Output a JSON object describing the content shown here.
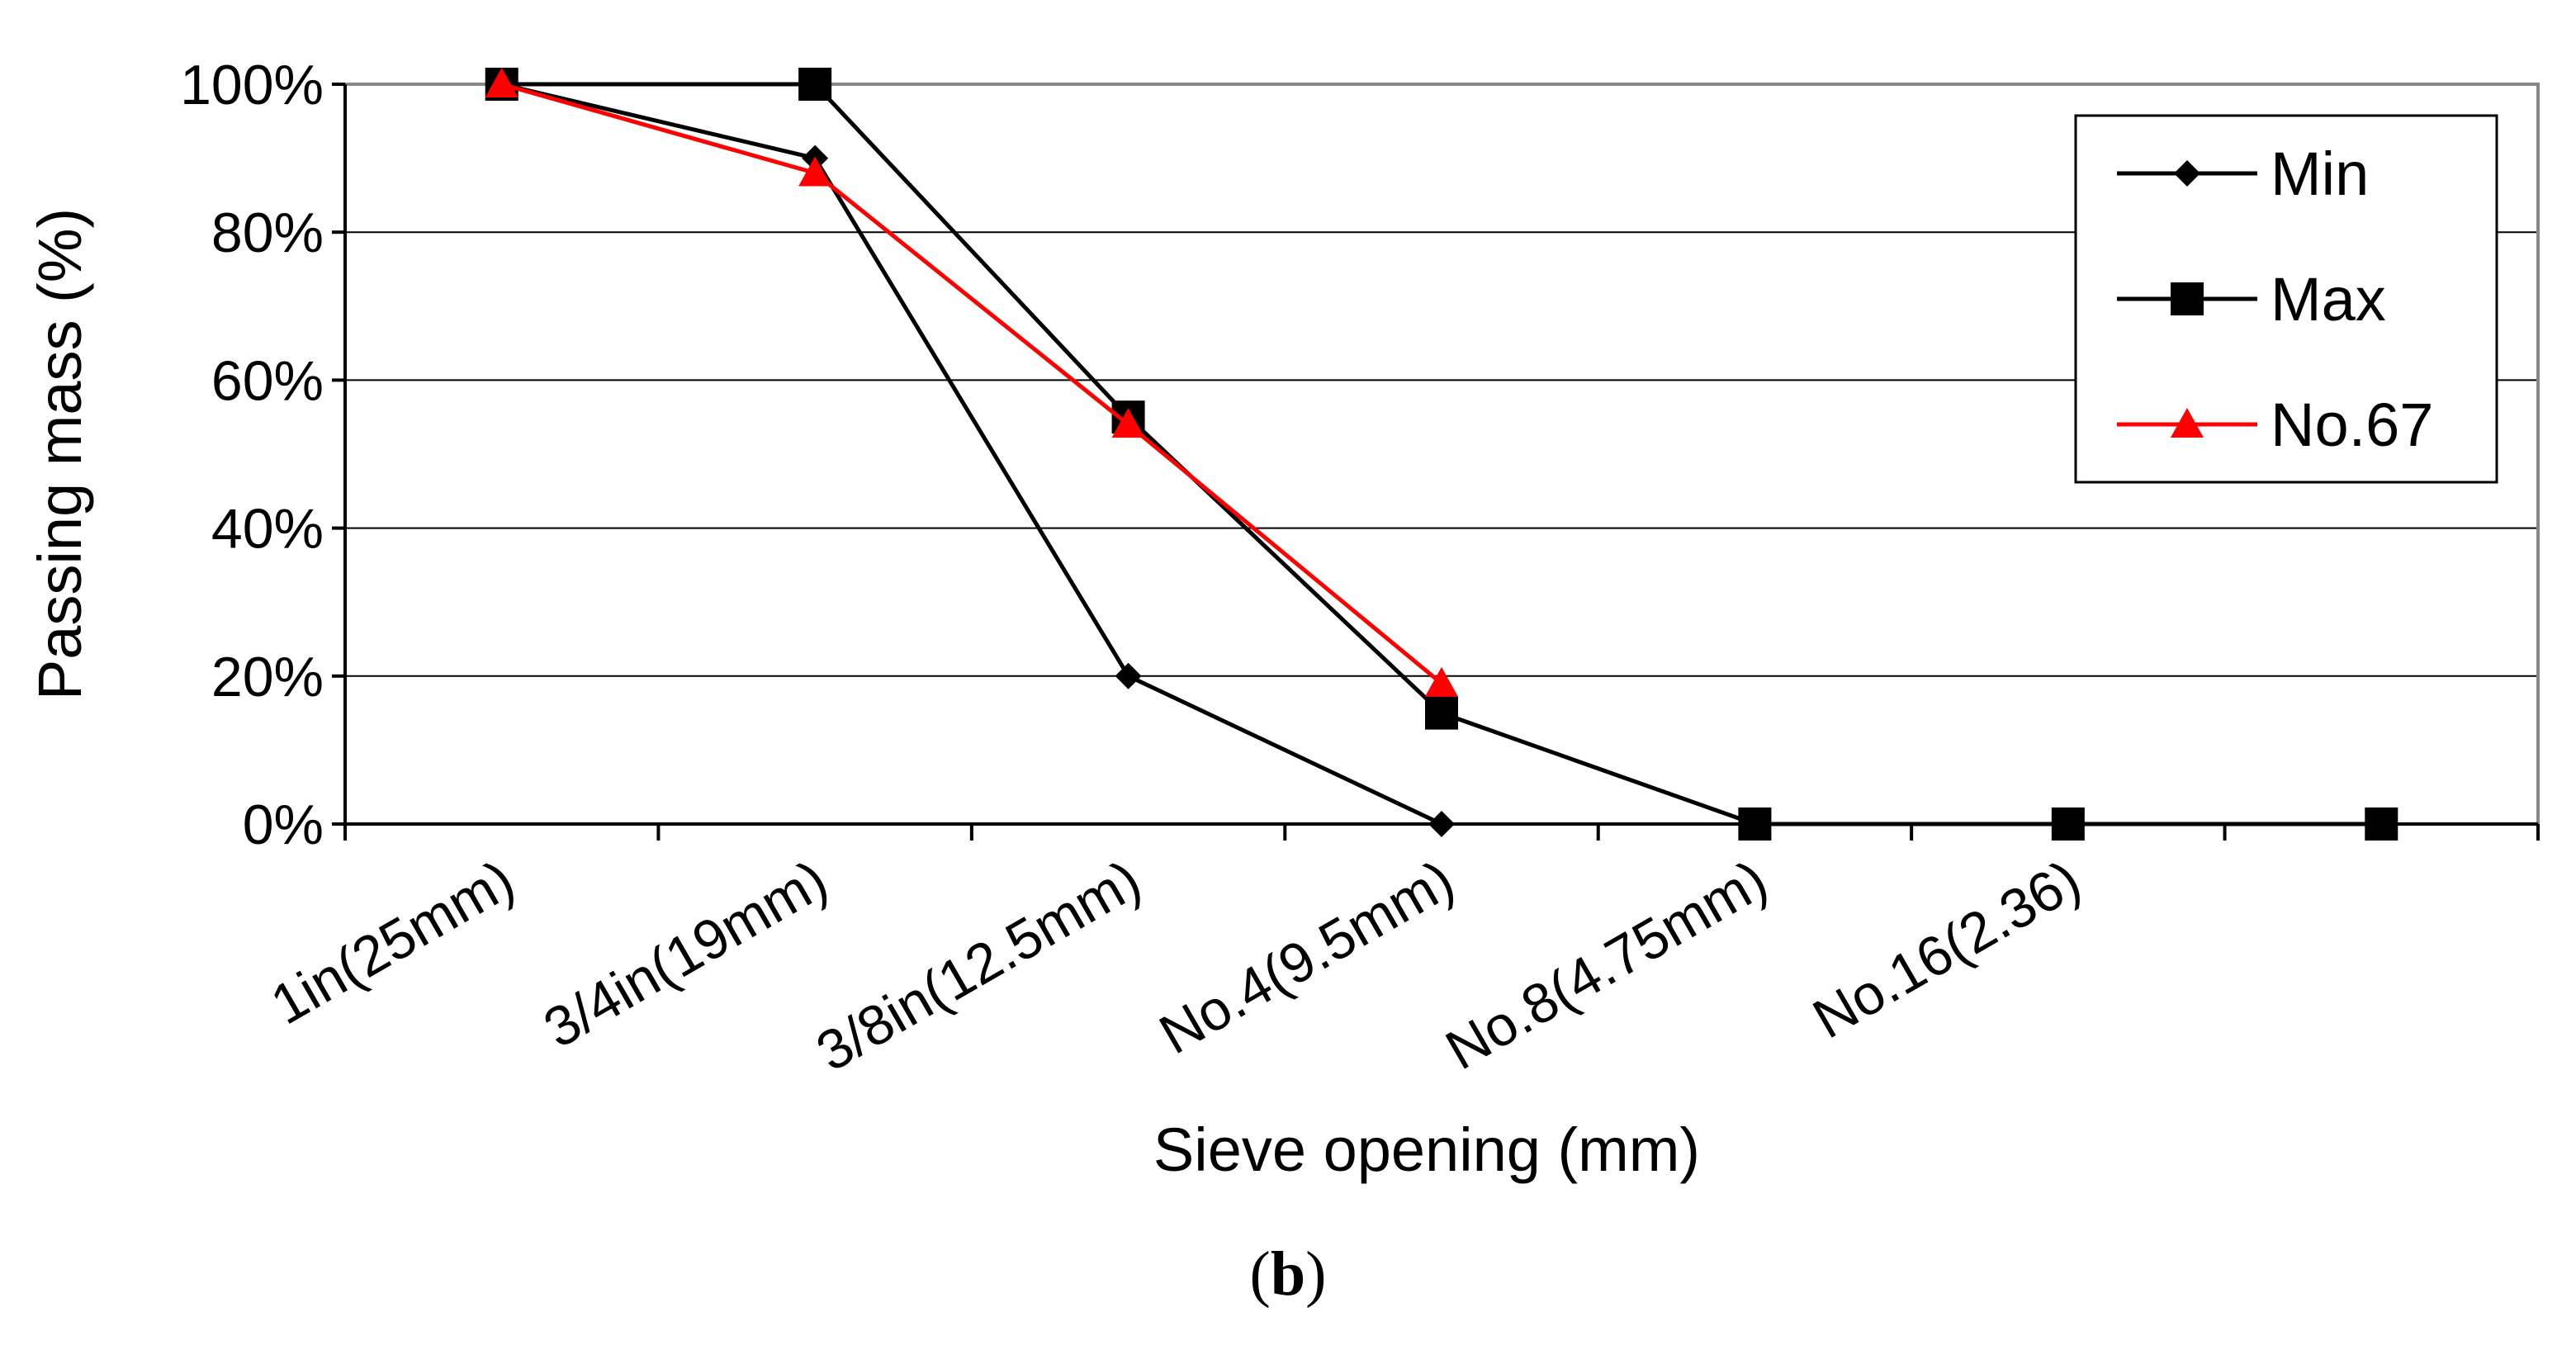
{
  "chart_data": {
    "type": "line",
    "title": "",
    "xlabel": "Sieve opening (mm)",
    "ylabel": "Passing mass (%)",
    "categories": [
      "1in(25mm)",
      "3/4in(19mm)",
      "3/8in(12.5mm)",
      "No.4(9.5mm)",
      "No.8(4.75mm)",
      "No.16(2.36)",
      ""
    ],
    "ylim": [
      0,
      100
    ],
    "yticks": [
      "0%",
      "20%",
      "40%",
      "60%",
      "80%",
      "100%"
    ],
    "ytick_values": [
      0,
      20,
      40,
      60,
      80,
      100
    ],
    "grid": "horizontal",
    "legend_position": "top-right",
    "series": [
      {
        "name": "Min",
        "marker": "diamond",
        "color": "#000000",
        "values": [
          100,
          90,
          20,
          0,
          null,
          null,
          null
        ]
      },
      {
        "name": "Max",
        "marker": "square",
        "color": "#000000",
        "values": [
          100,
          100,
          55,
          15,
          0,
          0,
          0
        ]
      },
      {
        "name": "No.67",
        "marker": "triangle",
        "color": "#ff0000",
        "values": [
          100,
          88,
          54,
          19,
          null,
          null,
          null
        ]
      }
    ]
  },
  "caption": {
    "open": "(",
    "letter": "b",
    "close": ")"
  }
}
